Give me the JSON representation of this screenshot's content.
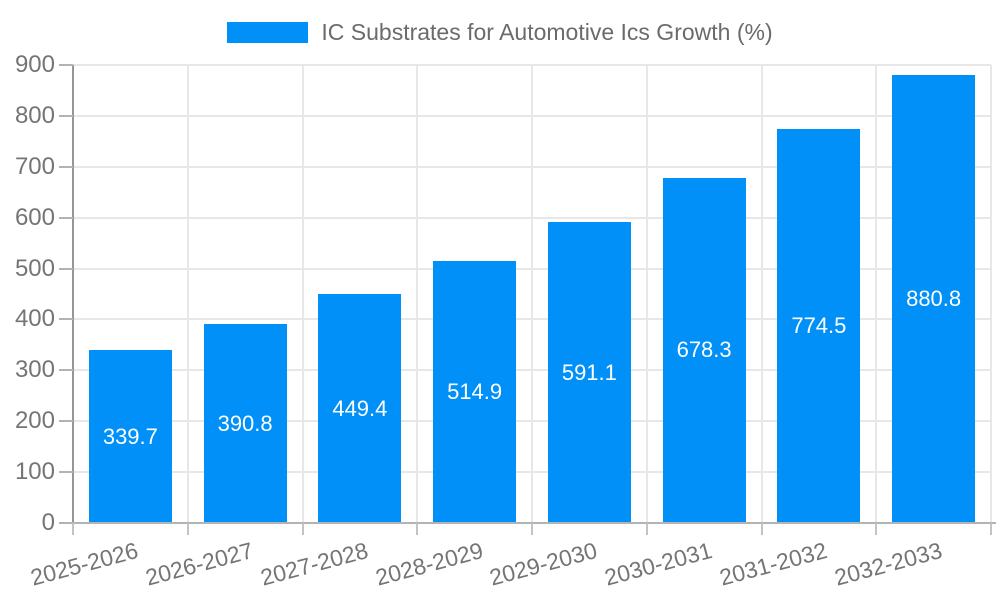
{
  "legend": {
    "label": "IC Substrates for Automotive Ics Growth (%)",
    "swatch_color": "#0090f8"
  },
  "chart_data": {
    "type": "bar",
    "title": "IC Substrates for Automotive Ics Growth (%)",
    "categories": [
      "2025-2026",
      "2026-2027",
      "2027-2028",
      "2028-2029",
      "2029-2030",
      "2030-2031",
      "2031-2032",
      "2032-2033"
    ],
    "series": [
      {
        "name": "IC Substrates for Automotive Ics Growth (%)",
        "values": [
          339.7,
          390.8,
          449.4,
          514.9,
          591.1,
          678.3,
          774.5,
          880.8
        ]
      }
    ],
    "value_labels": [
      "339.7",
      "390.8",
      "449.4",
      "514.9",
      "591.1",
      "678.3",
      "774.5",
      "880.8"
    ],
    "xlabel": "",
    "ylabel": "",
    "ylim": [
      0,
      900
    ],
    "ytick_step": 100,
    "ytick_labels": [
      "0",
      "100",
      "200",
      "300",
      "400",
      "500",
      "600",
      "700",
      "800",
      "900"
    ],
    "grid": true,
    "legend_position": "top-center",
    "xtick_rotation_deg": -15,
    "bar_color": "#0090f8",
    "value_label_color": "#ffffff",
    "value_label_position": "inside-center"
  }
}
